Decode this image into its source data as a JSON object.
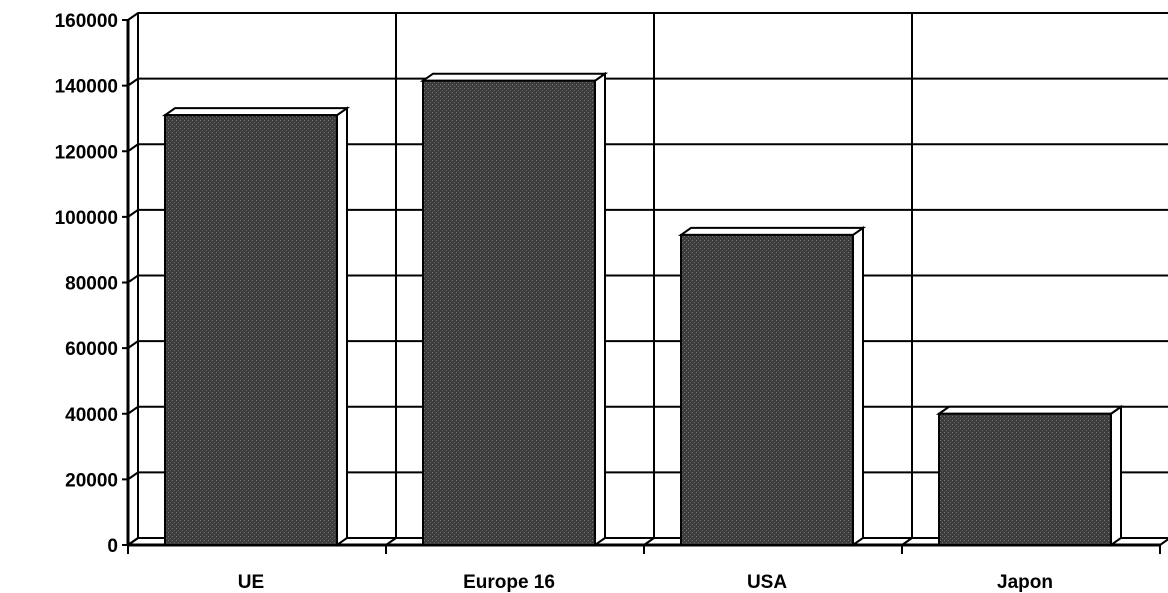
{
  "chart_data": {
    "type": "bar",
    "style": "3d",
    "categories": [
      "UE",
      "Europe 16",
      "USA",
      "Japon"
    ],
    "values": [
      131000,
      141500,
      94500,
      40000
    ],
    "title": "",
    "xlabel": "",
    "ylabel": "",
    "ylim": [
      0,
      160000
    ],
    "yticks": [
      "0",
      "20000",
      "40000",
      "60000",
      "80000",
      "100000",
      "120000",
      "140000",
      "160000"
    ],
    "grid": true,
    "legend": "none",
    "bar_color": "#3a3a3a"
  }
}
